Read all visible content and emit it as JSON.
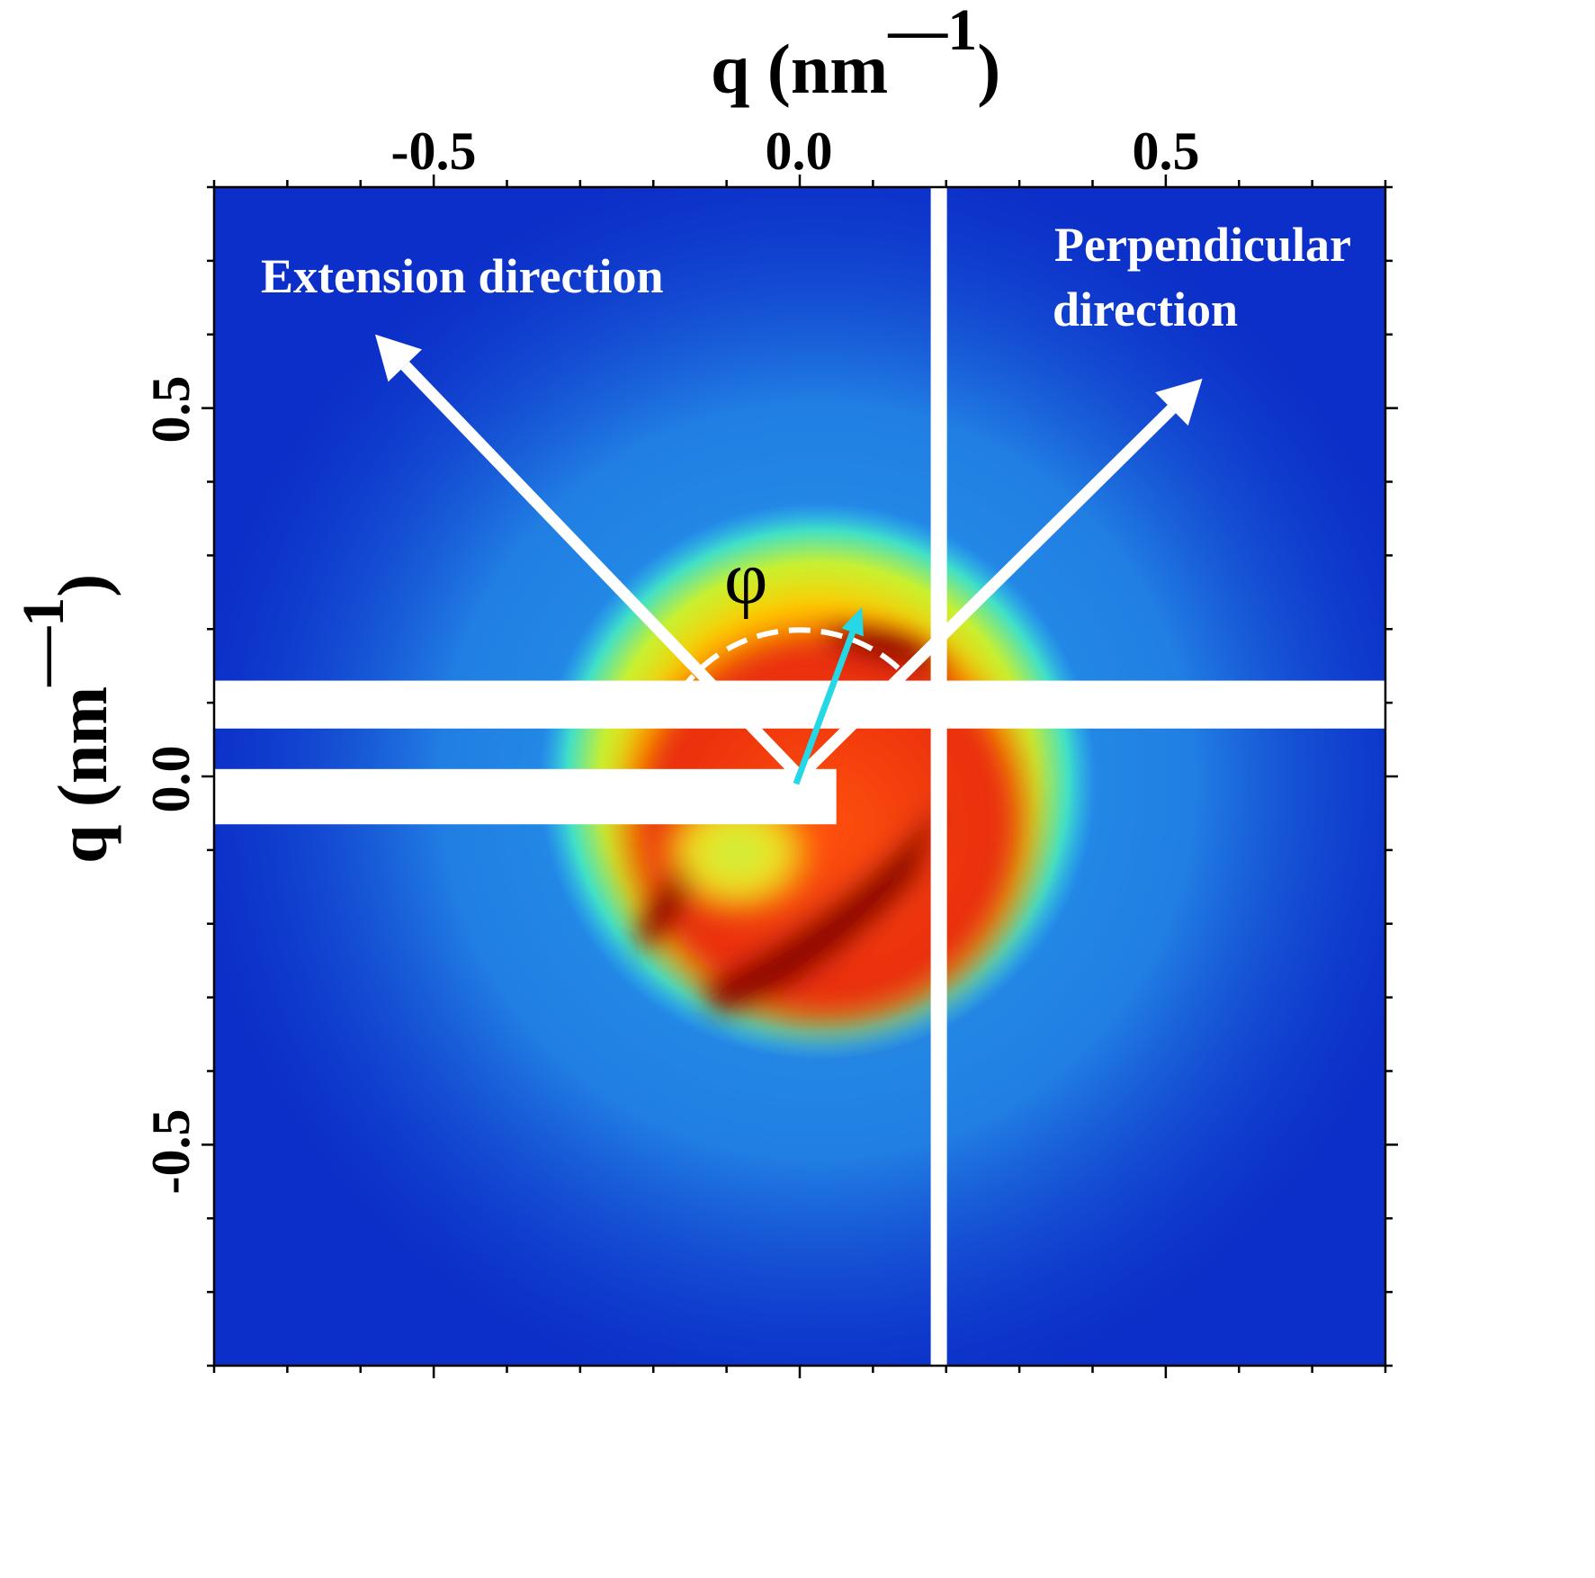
{
  "chart_data": {
    "type": "heatmap",
    "subtype": "2D SAXS scattering pattern",
    "x_axis": {
      "label": "q (nm",
      "superscript": "—1",
      "label_close": ")",
      "position": "top",
      "range": [
        -0.8,
        0.8
      ],
      "ticks": [
        -0.5,
        0.0,
        0.5
      ],
      "tick_labels": [
        "-0.5",
        "0.0",
        "0.5"
      ],
      "minor_step": 0.1
    },
    "y_axis": {
      "label": "q (nm",
      "superscript": "—1",
      "label_close": ")",
      "position": "left",
      "range": [
        -0.8,
        0.8
      ],
      "ticks": [
        0.5,
        0.0,
        -0.5
      ],
      "tick_labels": [
        "0.5",
        "0.0",
        "-0.5"
      ],
      "minor_step": 0.1
    },
    "colormap": "jet",
    "colors": {
      "background": "#0b2fc8",
      "halo": "#2aa8f0",
      "ring": "#ffe400",
      "core": "#e83008",
      "peak": "#8c0000",
      "overlay": "#ffffff",
      "phi_arrow": "#26d7e6"
    },
    "annotations": {
      "extension_label": "Extension direction",
      "perpendicular_label_line1": "Perpendicular",
      "perpendicular_label_line2": "direction",
      "angle_symbol": "φ"
    },
    "vectors": [
      {
        "name": "extension-direction",
        "from": [
          0.0,
          0.0
        ],
        "to": [
          -0.58,
          0.6
        ]
      },
      {
        "name": "perpendicular-direction",
        "from": [
          0.0,
          0.0
        ],
        "to": [
          0.55,
          0.54
        ]
      },
      {
        "name": "phi-vector",
        "from": [
          -0.005,
          -0.01
        ],
        "to": [
          0.085,
          0.23
        ]
      }
    ],
    "angle_arc": {
      "center": [
        0.0,
        0.0
      ],
      "radius": 0.2,
      "from_deg": 45,
      "to_deg": 145
    },
    "beamstop_bars": [
      {
        "name": "upper-bar",
        "x": [
          -0.8,
          0.8
        ],
        "y": [
          0.065,
          0.13
        ]
      },
      {
        "name": "lower-bar",
        "x": [
          -0.8,
          0.05
        ],
        "y": [
          -0.065,
          0.01
        ]
      }
    ],
    "gap_line": {
      "x": 0.19,
      "y": [
        -0.8,
        0.8
      ]
    }
  }
}
